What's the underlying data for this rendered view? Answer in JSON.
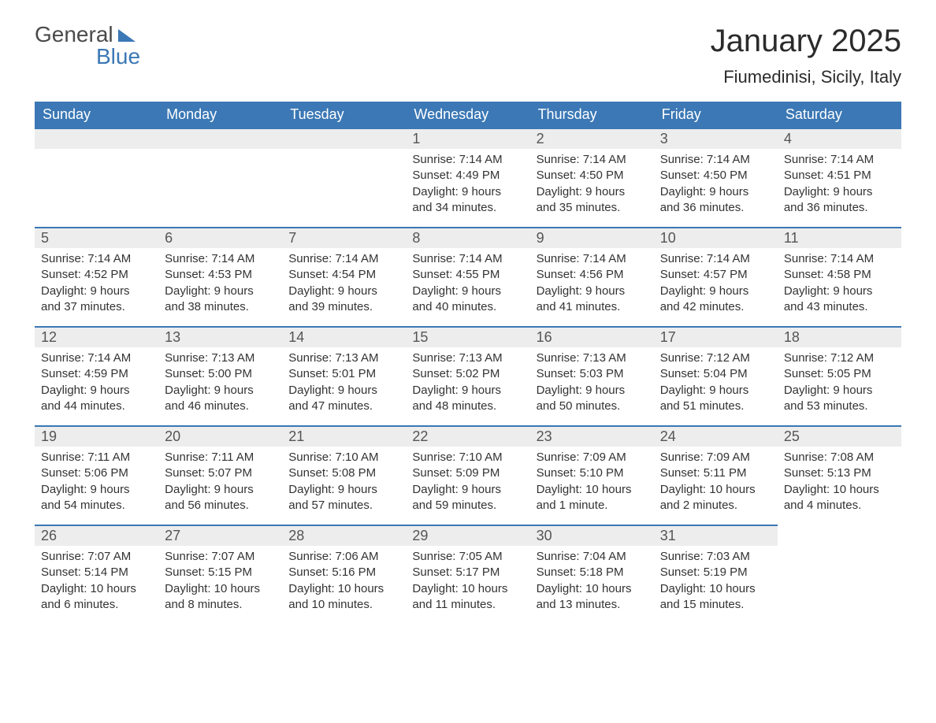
{
  "brand": {
    "text_top": "General",
    "text_bottom": "Blue"
  },
  "title": "January 2025",
  "location": "Fiumedinisi, Sicily, Italy",
  "colors": {
    "header_bg": "#3b78b5",
    "header_text": "#ffffff",
    "daybar_bg": "#ededed",
    "daybar_border": "#3b78b5",
    "body_text": "#333333",
    "page_bg": "#ffffff"
  },
  "weekdays": [
    "Sunday",
    "Monday",
    "Tuesday",
    "Wednesday",
    "Thursday",
    "Friday",
    "Saturday"
  ],
  "weeks": [
    [
      {
        "day": "",
        "sunrise": "",
        "sunset": "",
        "daylight": ""
      },
      {
        "day": "",
        "sunrise": "",
        "sunset": "",
        "daylight": ""
      },
      {
        "day": "",
        "sunrise": "",
        "sunset": "",
        "daylight": ""
      },
      {
        "day": "1",
        "sunrise": "Sunrise: 7:14 AM",
        "sunset": "Sunset: 4:49 PM",
        "daylight": "Daylight: 9 hours and 34 minutes."
      },
      {
        "day": "2",
        "sunrise": "Sunrise: 7:14 AM",
        "sunset": "Sunset: 4:50 PM",
        "daylight": "Daylight: 9 hours and 35 minutes."
      },
      {
        "day": "3",
        "sunrise": "Sunrise: 7:14 AM",
        "sunset": "Sunset: 4:50 PM",
        "daylight": "Daylight: 9 hours and 36 minutes."
      },
      {
        "day": "4",
        "sunrise": "Sunrise: 7:14 AM",
        "sunset": "Sunset: 4:51 PM",
        "daylight": "Daylight: 9 hours and 36 minutes."
      }
    ],
    [
      {
        "day": "5",
        "sunrise": "Sunrise: 7:14 AM",
        "sunset": "Sunset: 4:52 PM",
        "daylight": "Daylight: 9 hours and 37 minutes."
      },
      {
        "day": "6",
        "sunrise": "Sunrise: 7:14 AM",
        "sunset": "Sunset: 4:53 PM",
        "daylight": "Daylight: 9 hours and 38 minutes."
      },
      {
        "day": "7",
        "sunrise": "Sunrise: 7:14 AM",
        "sunset": "Sunset: 4:54 PM",
        "daylight": "Daylight: 9 hours and 39 minutes."
      },
      {
        "day": "8",
        "sunrise": "Sunrise: 7:14 AM",
        "sunset": "Sunset: 4:55 PM",
        "daylight": "Daylight: 9 hours and 40 minutes."
      },
      {
        "day": "9",
        "sunrise": "Sunrise: 7:14 AM",
        "sunset": "Sunset: 4:56 PM",
        "daylight": "Daylight: 9 hours and 41 minutes."
      },
      {
        "day": "10",
        "sunrise": "Sunrise: 7:14 AM",
        "sunset": "Sunset: 4:57 PM",
        "daylight": "Daylight: 9 hours and 42 minutes."
      },
      {
        "day": "11",
        "sunrise": "Sunrise: 7:14 AM",
        "sunset": "Sunset: 4:58 PM",
        "daylight": "Daylight: 9 hours and 43 minutes."
      }
    ],
    [
      {
        "day": "12",
        "sunrise": "Sunrise: 7:14 AM",
        "sunset": "Sunset: 4:59 PM",
        "daylight": "Daylight: 9 hours and 44 minutes."
      },
      {
        "day": "13",
        "sunrise": "Sunrise: 7:13 AM",
        "sunset": "Sunset: 5:00 PM",
        "daylight": "Daylight: 9 hours and 46 minutes."
      },
      {
        "day": "14",
        "sunrise": "Sunrise: 7:13 AM",
        "sunset": "Sunset: 5:01 PM",
        "daylight": "Daylight: 9 hours and 47 minutes."
      },
      {
        "day": "15",
        "sunrise": "Sunrise: 7:13 AM",
        "sunset": "Sunset: 5:02 PM",
        "daylight": "Daylight: 9 hours and 48 minutes."
      },
      {
        "day": "16",
        "sunrise": "Sunrise: 7:13 AM",
        "sunset": "Sunset: 5:03 PM",
        "daylight": "Daylight: 9 hours and 50 minutes."
      },
      {
        "day": "17",
        "sunrise": "Sunrise: 7:12 AM",
        "sunset": "Sunset: 5:04 PM",
        "daylight": "Daylight: 9 hours and 51 minutes."
      },
      {
        "day": "18",
        "sunrise": "Sunrise: 7:12 AM",
        "sunset": "Sunset: 5:05 PM",
        "daylight": "Daylight: 9 hours and 53 minutes."
      }
    ],
    [
      {
        "day": "19",
        "sunrise": "Sunrise: 7:11 AM",
        "sunset": "Sunset: 5:06 PM",
        "daylight": "Daylight: 9 hours and 54 minutes."
      },
      {
        "day": "20",
        "sunrise": "Sunrise: 7:11 AM",
        "sunset": "Sunset: 5:07 PM",
        "daylight": "Daylight: 9 hours and 56 minutes."
      },
      {
        "day": "21",
        "sunrise": "Sunrise: 7:10 AM",
        "sunset": "Sunset: 5:08 PM",
        "daylight": "Daylight: 9 hours and 57 minutes."
      },
      {
        "day": "22",
        "sunrise": "Sunrise: 7:10 AM",
        "sunset": "Sunset: 5:09 PM",
        "daylight": "Daylight: 9 hours and 59 minutes."
      },
      {
        "day": "23",
        "sunrise": "Sunrise: 7:09 AM",
        "sunset": "Sunset: 5:10 PM",
        "daylight": "Daylight: 10 hours and 1 minute."
      },
      {
        "day": "24",
        "sunrise": "Sunrise: 7:09 AM",
        "sunset": "Sunset: 5:11 PM",
        "daylight": "Daylight: 10 hours and 2 minutes."
      },
      {
        "day": "25",
        "sunrise": "Sunrise: 7:08 AM",
        "sunset": "Sunset: 5:13 PM",
        "daylight": "Daylight: 10 hours and 4 minutes."
      }
    ],
    [
      {
        "day": "26",
        "sunrise": "Sunrise: 7:07 AM",
        "sunset": "Sunset: 5:14 PM",
        "daylight": "Daylight: 10 hours and 6 minutes."
      },
      {
        "day": "27",
        "sunrise": "Sunrise: 7:07 AM",
        "sunset": "Sunset: 5:15 PM",
        "daylight": "Daylight: 10 hours and 8 minutes."
      },
      {
        "day": "28",
        "sunrise": "Sunrise: 7:06 AM",
        "sunset": "Sunset: 5:16 PM",
        "daylight": "Daylight: 10 hours and 10 minutes."
      },
      {
        "day": "29",
        "sunrise": "Sunrise: 7:05 AM",
        "sunset": "Sunset: 5:17 PM",
        "daylight": "Daylight: 10 hours and 11 minutes."
      },
      {
        "day": "30",
        "sunrise": "Sunrise: 7:04 AM",
        "sunset": "Sunset: 5:18 PM",
        "daylight": "Daylight: 10 hours and 13 minutes."
      },
      {
        "day": "31",
        "sunrise": "Sunrise: 7:03 AM",
        "sunset": "Sunset: 5:19 PM",
        "daylight": "Daylight: 10 hours and 15 minutes."
      },
      {
        "day": "",
        "sunrise": "",
        "sunset": "",
        "daylight": ""
      }
    ]
  ]
}
